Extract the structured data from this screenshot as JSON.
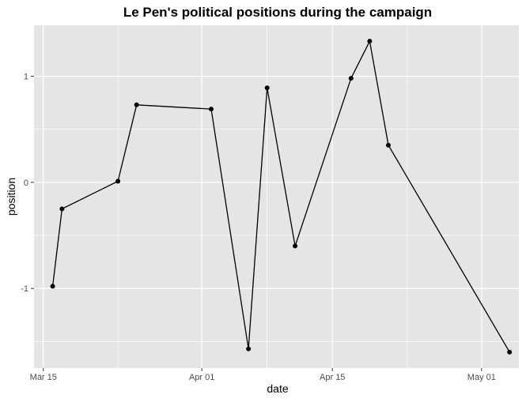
{
  "chart_data": {
    "type": "line",
    "title": "Le Pen's political positions during the campaign",
    "xlabel": "date",
    "ylabel": "position",
    "x_ticks": [
      "Mar 15",
      "Apr 01",
      "Apr 15",
      "May 01"
    ],
    "y_ticks": [
      "-1",
      "0",
      "1"
    ],
    "x_range": [
      "2017-03-14",
      "2017-05-05"
    ],
    "ylim": [
      -1.75,
      1.48
    ],
    "grid": true,
    "points": [
      {
        "x": "2017-03-16",
        "y": -0.98
      },
      {
        "x": "2017-03-17",
        "y": -0.25
      },
      {
        "x": "2017-03-23",
        "y": 0.01
      },
      {
        "x": "2017-03-25",
        "y": 0.73
      },
      {
        "x": "2017-04-02",
        "y": 0.69
      },
      {
        "x": "2017-04-06",
        "y": -1.57
      },
      {
        "x": "2017-04-08",
        "y": 0.89
      },
      {
        "x": "2017-04-11",
        "y": -0.6
      },
      {
        "x": "2017-04-17",
        "y": 0.98
      },
      {
        "x": "2017-04-19",
        "y": 1.33
      },
      {
        "x": "2017-04-21",
        "y": 0.35
      },
      {
        "x": "2017-05-04",
        "y": -1.6
      }
    ],
    "colors": {
      "panel": "#e5e5e5",
      "grid": "#ffffff",
      "line": "#000000",
      "point": "#000000",
      "tick_text": "#4d4d4d"
    }
  }
}
